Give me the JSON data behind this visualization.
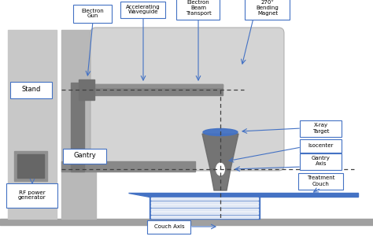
{
  "bg_color": "#ffffff",
  "stand_color": "#c8c8c8",
  "gantry_head_color": "#d4d4d4",
  "gantry_body_color": "#bebebe",
  "beam_dark": "#606060",
  "couch_color": "#4472c4",
  "couch_dark": "#3560a8",
  "label_box_color": "#4472c4",
  "floor_color": "#a0a0a0",
  "arrow_color": "#4472c4",
  "dashed_color": "#404040",
  "waveguide_color": "#808080",
  "arm_color": "#888888",
  "rf_box_color": "#909090",
  "rf_inner_color": "#666666",
  "labels": {
    "electron_gun": "Electron\nGun",
    "waveguide": "Accelerating\nWaveguide",
    "beam_transport": "Electron\nBeam\nTransport",
    "bending_magnet": "270°\nBending\nMagnet",
    "xray_target": "X-ray\nTarget",
    "isocenter": "Isocenter",
    "gantry_axis": "Gantry\nAxis",
    "treatment_couch": "Treatment\nCouch",
    "stand": "Stand",
    "gantry": "Gantry",
    "rf_power": "RF power\ngenerator",
    "couch_axis": "Couch Axis"
  }
}
